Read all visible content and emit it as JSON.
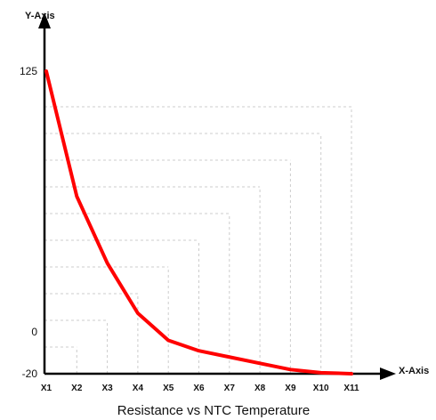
{
  "chart_data": {
    "type": "line",
    "title": "Resistance vs NTC Temperature",
    "xlabel": "X-Axis",
    "ylabel": "Y-Axis",
    "categories": [
      "X1",
      "X2",
      "X3",
      "X4",
      "X5",
      "X6",
      "X7",
      "X8",
      "X9",
      "X10",
      "X11"
    ],
    "series": [
      {
        "values": [
          125,
          65,
          33,
          9,
          -4,
          -9,
          -12,
          -15,
          -18,
          -19.5,
          -20
        ]
      }
    ],
    "ylim": [
      -20,
      125
    ],
    "yticks": [
      125,
      0,
      -20
    ],
    "grid": true,
    "legend": "none",
    "colors": {
      "line": "#ff0000",
      "axis": "#000000",
      "grid": "#cccccc"
    }
  }
}
